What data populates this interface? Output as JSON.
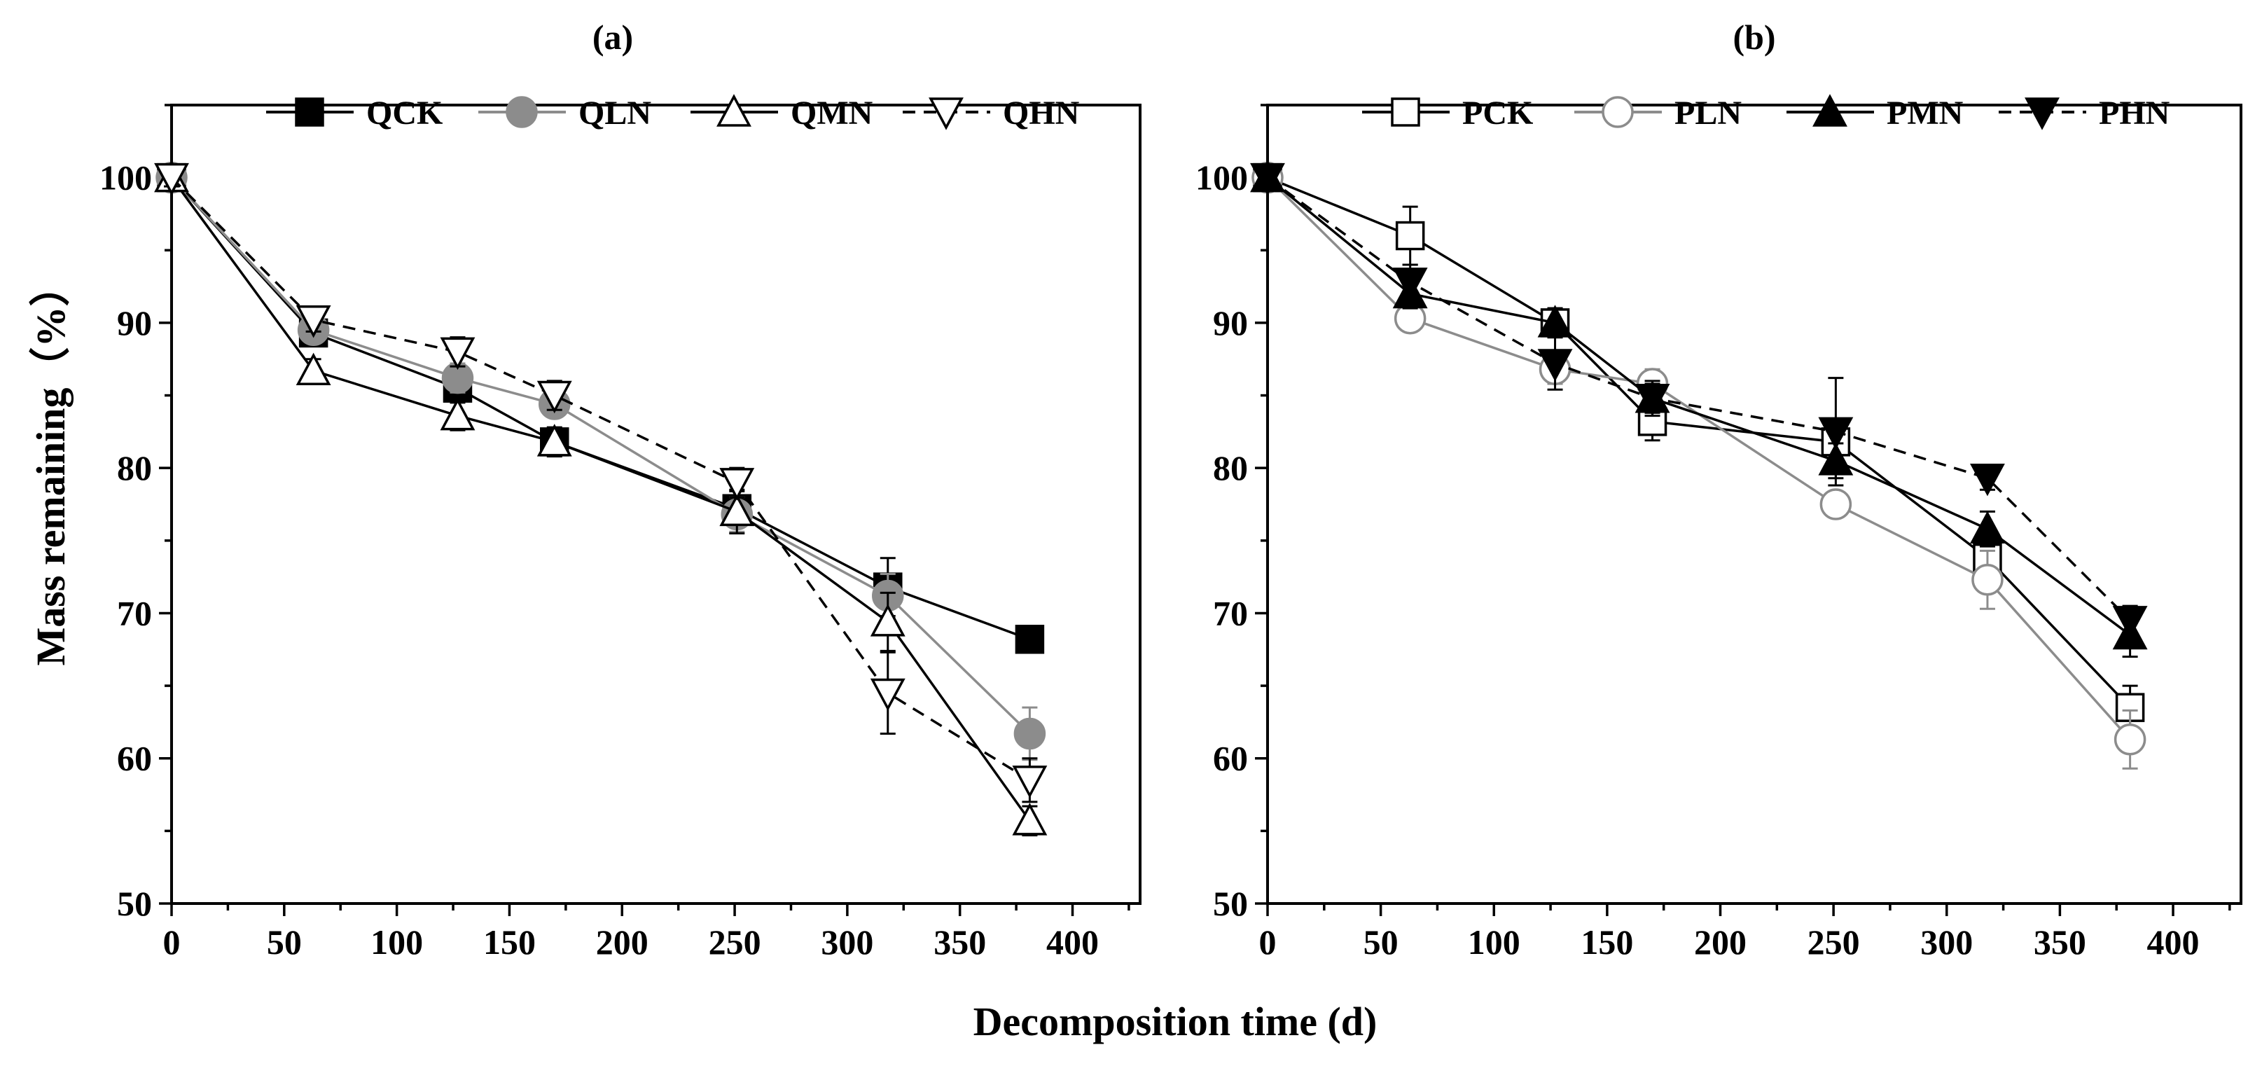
{
  "figure": {
    "xlabel": "Decomposition time (d)",
    "ylabel": "Mass remaining（%）"
  },
  "chart_data": [
    {
      "type": "line",
      "title": "(a)",
      "xlabel": "Decomposition time (d)",
      "ylabel": "Mass remaining（%）",
      "xlim": [
        0,
        430
      ],
      "ylim": [
        50,
        105
      ],
      "xticks": [
        0,
        50,
        100,
        150,
        200,
        250,
        300,
        350,
        400
      ],
      "yticks": [
        50,
        60,
        70,
        80,
        90,
        100
      ],
      "legend_position": "top",
      "x": [
        0,
        63,
        127,
        170,
        251,
        318,
        381
      ],
      "series": [
        {
          "name": "QCK",
          "marker": "square",
          "fill": "black",
          "line": "solid",
          "color": "#000000",
          "values": [
            100,
            89.3,
            85.5,
            81.8,
            77.2,
            71.8,
            68.2
          ],
          "errors": [
            0.6,
            0.8,
            1.0,
            0.8,
            1.2,
            2.0,
            0.5
          ]
        },
        {
          "name": "QLN",
          "marker": "circle",
          "fill": "gray",
          "line": "solid",
          "color": "#8c8c8c",
          "values": [
            100,
            89.5,
            86.2,
            84.4,
            76.8,
            71.2,
            61.7
          ],
          "errors": [
            0.6,
            0.8,
            1.0,
            0.8,
            1.2,
            1.5,
            1.8
          ]
        },
        {
          "name": "QMN",
          "marker": "triangle-up",
          "fill": "white",
          "line": "solid",
          "color": "#000000",
          "values": [
            100,
            86.7,
            83.6,
            81.8,
            77.0,
            69.4,
            55.7
          ],
          "errors": [
            0.6,
            0.8,
            1.0,
            1.0,
            1.5,
            2.0,
            1.0
          ]
        },
        {
          "name": "QHN",
          "marker": "triangle-down",
          "fill": "white",
          "line": "dashed",
          "color": "#000000",
          "values": [
            100,
            90.2,
            88.0,
            85.0,
            79.0,
            64.5,
            58.5
          ],
          "errors": [
            0.6,
            0.8,
            1.0,
            1.0,
            1.0,
            2.8,
            1.5
          ]
        }
      ]
    },
    {
      "type": "line",
      "title": "(b)",
      "xlabel": "Decomposition time (d)",
      "ylabel": "Mass remaining（%）",
      "xlim": [
        0,
        430
      ],
      "ylim": [
        50,
        105
      ],
      "xticks": [
        0,
        50,
        100,
        150,
        200,
        250,
        300,
        350,
        400
      ],
      "yticks": [
        50,
        60,
        70,
        80,
        90,
        100
      ],
      "legend_position": "top",
      "x": [
        0,
        63,
        127,
        170,
        251,
        318,
        381
      ],
      "series": [
        {
          "name": "PCK",
          "marker": "square",
          "fill": "white",
          "line": "solid",
          "color": "#000000",
          "values": [
            100,
            96.0,
            90.0,
            83.2,
            81.8,
            73.8,
            63.5
          ],
          "errors": [
            0.5,
            2.0,
            1.0,
            1.3,
            1.5,
            1.5,
            1.5
          ]
        },
        {
          "name": "PLN",
          "marker": "circle",
          "fill": "white",
          "line": "solid",
          "color": "#8c8c8c",
          "values": [
            100,
            90.3,
            86.8,
            85.8,
            77.5,
            72.3,
            61.3
          ],
          "errors": [
            0.5,
            0.8,
            1.0,
            1.0,
            0.8,
            2.0,
            2.0
          ]
        },
        {
          "name": "PMN",
          "marker": "triangle-up",
          "fill": "black",
          "line": "solid",
          "color": "#000000",
          "values": [
            100,
            92.0,
            90.0,
            84.8,
            80.5,
            75.8,
            68.5
          ],
          "errors": [
            0.5,
            1.0,
            1.0,
            1.0,
            1.2,
            1.2,
            1.5
          ]
        },
        {
          "name": "PHN",
          "marker": "triangle-down",
          "fill": "black",
          "line": "dashed",
          "color": "#000000",
          "values": [
            100,
            92.8,
            87.2,
            84.8,
            82.5,
            79.3,
            69.5
          ],
          "errors": [
            0.5,
            1.2,
            1.8,
            1.2,
            3.7,
            0.8,
            1.0
          ]
        }
      ]
    }
  ]
}
